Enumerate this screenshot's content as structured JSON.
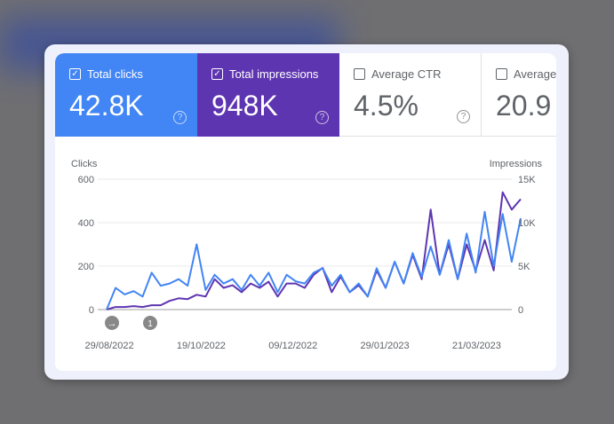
{
  "tiles": [
    {
      "label": "Total clicks",
      "value": "42.8K",
      "checked": true,
      "color": "#4285f4"
    },
    {
      "label": "Total impressions",
      "value": "948K",
      "checked": true,
      "color": "#5e35b1"
    },
    {
      "label": "Average CTR",
      "value": "4.5%",
      "checked": false
    },
    {
      "label": "Average",
      "value": "20.9",
      "checked": false
    }
  ],
  "annotations": [
    {
      "icon": "arrow-right-icon"
    },
    {
      "label": "1"
    }
  ],
  "chart_data": {
    "type": "line",
    "ylabel": "Clicks",
    "y2label": "Impressions",
    "ylim": [
      0,
      600
    ],
    "y2lim": [
      0,
      15000
    ],
    "yticks": [
      "0",
      "200",
      "400",
      "600"
    ],
    "y2ticks": [
      "0",
      "5K",
      "10K",
      "15K"
    ],
    "xticks": [
      "29/08/2022",
      "19/10/2022",
      "09/12/2022",
      "29/01/2023",
      "21/03/2023"
    ],
    "grid": true,
    "x": [
      "2022-08-26",
      "2022-08-31",
      "2022-09-05",
      "2022-09-10",
      "2022-09-15",
      "2022-09-20",
      "2022-09-25",
      "2022-09-30",
      "2022-10-05",
      "2022-10-10",
      "2022-10-15",
      "2022-10-20",
      "2022-10-25",
      "2022-10-30",
      "2022-11-04",
      "2022-11-09",
      "2022-11-14",
      "2022-11-19",
      "2022-11-24",
      "2022-11-29",
      "2022-12-04",
      "2022-12-09",
      "2022-12-14",
      "2022-12-19",
      "2022-12-24",
      "2022-12-29",
      "2023-01-03",
      "2023-01-08",
      "2023-01-13",
      "2023-01-18",
      "2023-01-23",
      "2023-01-28",
      "2023-02-02",
      "2023-02-07",
      "2023-02-12",
      "2023-02-17",
      "2023-02-22",
      "2023-02-27",
      "2023-03-04",
      "2023-03-09",
      "2023-03-14",
      "2023-03-19",
      "2023-03-24",
      "2023-03-29",
      "2023-04-03",
      "2023-04-08",
      "2023-04-13"
    ],
    "series": [
      {
        "name": "Clicks",
        "axis": "left",
        "color": "#4285f4",
        "values": [
          0,
          100,
          70,
          85,
          60,
          170,
          110,
          120,
          140,
          110,
          300,
          90,
          160,
          120,
          140,
          90,
          160,
          110,
          170,
          80,
          160,
          130,
          120,
          170,
          190,
          110,
          160,
          80,
          120,
          60,
          190,
          100,
          220,
          120,
          260,
          150,
          290,
          160,
          320,
          140,
          350,
          170,
          450,
          200,
          440,
          220,
          420
        ]
      },
      {
        "name": "Impressions",
        "axis": "right",
        "color": "#5e35b1",
        "values": [
          0,
          300,
          300,
          400,
          300,
          500,
          500,
          1000,
          1300,
          1200,
          1700,
          1500,
          3500,
          2500,
          2800,
          2000,
          3000,
          2500,
          3200,
          1500,
          3000,
          3000,
          2500,
          4000,
          4800,
          2000,
          3800,
          2000,
          2800,
          1500,
          4500,
          2500,
          5500,
          3000,
          6300,
          3500,
          11500,
          4000,
          7500,
          3500,
          7500,
          4500,
          8000,
          4500,
          13500,
          11500,
          12700
        ]
      }
    ]
  }
}
